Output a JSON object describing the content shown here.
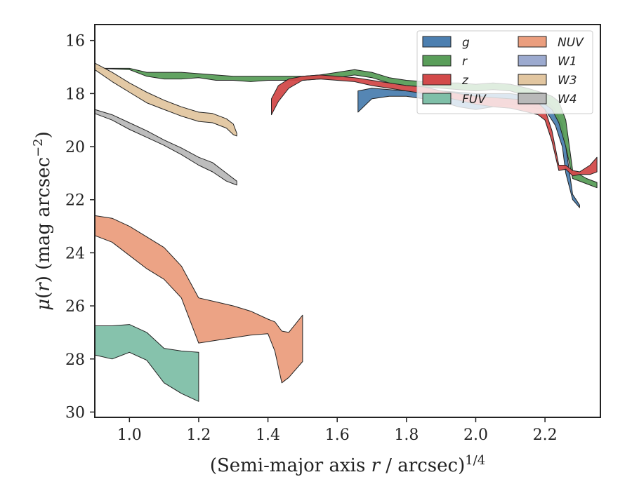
{
  "chart_data": {
    "type": "area",
    "xlabel": "(Semi-major axis r / arcsec)^{1/4}",
    "ylabel": "μ(r) (mag arcsec⁻²)",
    "xlim": [
      0.9,
      2.36
    ],
    "ylim": [
      30.2,
      15.4
    ],
    "y_inverted": true,
    "x_ticks": [
      1.0,
      1.2,
      1.4,
      1.6,
      1.8,
      2.0,
      2.2
    ],
    "x_tick_labels": [
      "1.0",
      "1.2",
      "1.4",
      "1.6",
      "1.8",
      "2.0",
      "2.2"
    ],
    "y_ticks": [
      16,
      18,
      20,
      22,
      24,
      26,
      28,
      30
    ],
    "y_tick_labels": [
      "16",
      "18",
      "20",
      "22",
      "24",
      "26",
      "28",
      "30"
    ],
    "grid": false,
    "legend_position": "top-right",
    "series": [
      {
        "name": "g",
        "color": "#4c7fb0",
        "x": [
          1.66,
          1.7,
          1.75,
          1.8,
          1.85,
          1.9,
          1.95,
          2.0,
          2.05,
          2.1,
          2.15,
          2.2,
          2.23,
          2.25,
          2.26,
          2.28,
          2.3
        ],
        "y_upper": [
          17.9,
          17.8,
          17.85,
          17.9,
          17.9,
          17.9,
          17.95,
          18.0,
          18.0,
          18.0,
          18.1,
          18.2,
          18.6,
          19.2,
          20.0,
          21.8,
          22.2
        ],
        "y_lower": [
          18.7,
          18.2,
          18.1,
          18.1,
          18.2,
          18.3,
          18.5,
          18.6,
          18.5,
          18.4,
          18.5,
          18.6,
          19.2,
          20.0,
          21.0,
          22.0,
          22.3
        ]
      },
      {
        "name": "r",
        "color": "#5a9e5a",
        "x": [
          0.9,
          1.0,
          1.05,
          1.1,
          1.15,
          1.2,
          1.25,
          1.3,
          1.35,
          1.4,
          1.45,
          1.5,
          1.55,
          1.6,
          1.65,
          1.7,
          1.75,
          1.8,
          1.85,
          1.9,
          1.95,
          2.0,
          2.05,
          2.1,
          2.15,
          2.2,
          2.22,
          2.24,
          2.26,
          2.28,
          2.32,
          2.35
        ],
        "y_upper": [
          17.05,
          17.05,
          17.2,
          17.2,
          17.2,
          17.25,
          17.3,
          17.35,
          17.35,
          17.35,
          17.35,
          17.35,
          17.3,
          17.2,
          17.1,
          17.2,
          17.4,
          17.5,
          17.55,
          17.6,
          17.6,
          17.65,
          17.6,
          17.65,
          17.8,
          18.0,
          18.1,
          18.3,
          19.0,
          20.9,
          21.2,
          21.35
        ],
        "y_lower": [
          17.05,
          17.1,
          17.35,
          17.45,
          17.45,
          17.4,
          17.5,
          17.5,
          17.55,
          17.5,
          17.5,
          17.5,
          17.45,
          17.4,
          17.3,
          17.4,
          17.6,
          17.7,
          17.75,
          17.8,
          17.85,
          17.9,
          17.85,
          17.9,
          18.1,
          18.4,
          18.6,
          19.1,
          20.0,
          21.2,
          21.4,
          21.55
        ]
      },
      {
        "name": "z",
        "color": "#d34a4a",
        "x": [
          1.41,
          1.43,
          1.46,
          1.5,
          1.55,
          1.6,
          1.65,
          1.7,
          1.75,
          1.8,
          1.85,
          1.9,
          1.95,
          2.0,
          2.05,
          2.1,
          2.15,
          2.18,
          2.2,
          2.22,
          2.24,
          2.26,
          2.28,
          2.3,
          2.33,
          2.35
        ],
        "y_upper": [
          18.2,
          17.7,
          17.45,
          17.35,
          17.3,
          17.35,
          17.4,
          17.5,
          17.6,
          17.7,
          17.75,
          17.9,
          18.0,
          18.1,
          18.15,
          18.2,
          18.25,
          18.35,
          18.6,
          19.4,
          20.7,
          20.7,
          20.9,
          20.95,
          20.7,
          20.4
        ],
        "y_lower": [
          18.8,
          18.3,
          17.8,
          17.5,
          17.45,
          17.5,
          17.55,
          17.7,
          17.8,
          17.9,
          18.0,
          18.1,
          18.25,
          18.4,
          18.5,
          18.55,
          18.7,
          18.8,
          19.0,
          19.8,
          20.9,
          20.85,
          21.1,
          21.05,
          21.05,
          20.95
        ]
      },
      {
        "name": "FUV",
        "color": "#7fbfa8",
        "x": [
          0.9,
          0.95,
          1.0,
          1.05,
          1.1,
          1.15,
          1.2
        ],
        "y_upper": [
          26.75,
          26.75,
          26.7,
          27.0,
          27.6,
          27.7,
          27.75
        ],
        "y_lower": [
          27.85,
          28.0,
          27.75,
          28.05,
          28.9,
          29.3,
          29.6
        ]
      },
      {
        "name": "NUV",
        "color": "#eb9e7e",
        "x": [
          0.9,
          0.95,
          1.0,
          1.05,
          1.1,
          1.15,
          1.2,
          1.25,
          1.3,
          1.35,
          1.4,
          1.42,
          1.44,
          1.46,
          1.5
        ],
        "y_upper": [
          22.6,
          22.7,
          23.0,
          23.4,
          23.8,
          24.5,
          25.7,
          25.85,
          26.0,
          26.2,
          26.5,
          26.6,
          26.95,
          27.0,
          26.35
        ],
        "y_lower": [
          23.35,
          23.6,
          24.1,
          24.6,
          25.0,
          25.7,
          27.4,
          27.3,
          27.2,
          27.1,
          27.05,
          27.7,
          28.9,
          28.7,
          28.1
        ]
      },
      {
        "name": "W1",
        "color": "#9caacf",
        "x": [],
        "y_upper": [],
        "y_lower": []
      },
      {
        "name": "W3",
        "color": "#e2c6a0",
        "x": [
          0.9,
          0.95,
          1.0,
          1.05,
          1.1,
          1.15,
          1.2,
          1.24,
          1.28,
          1.3,
          1.31
        ],
        "y_upper": [
          16.85,
          17.2,
          17.6,
          17.95,
          18.25,
          18.5,
          18.7,
          18.75,
          18.95,
          19.15,
          19.5
        ],
        "y_lower": [
          17.1,
          17.55,
          17.95,
          18.35,
          18.6,
          18.85,
          19.05,
          19.1,
          19.3,
          19.55,
          19.6
        ]
      },
      {
        "name": "W4",
        "color": "#b9b9b9",
        "x": [
          0.9,
          0.95,
          1.0,
          1.05,
          1.1,
          1.15,
          1.2,
          1.24,
          1.28,
          1.31
        ],
        "y_upper": [
          18.6,
          18.8,
          19.1,
          19.4,
          19.75,
          20.05,
          20.4,
          20.6,
          21.0,
          21.3
        ],
        "y_lower": [
          18.75,
          19.0,
          19.35,
          19.65,
          19.95,
          20.3,
          20.7,
          20.95,
          21.3,
          21.45
        ]
      }
    ]
  }
}
